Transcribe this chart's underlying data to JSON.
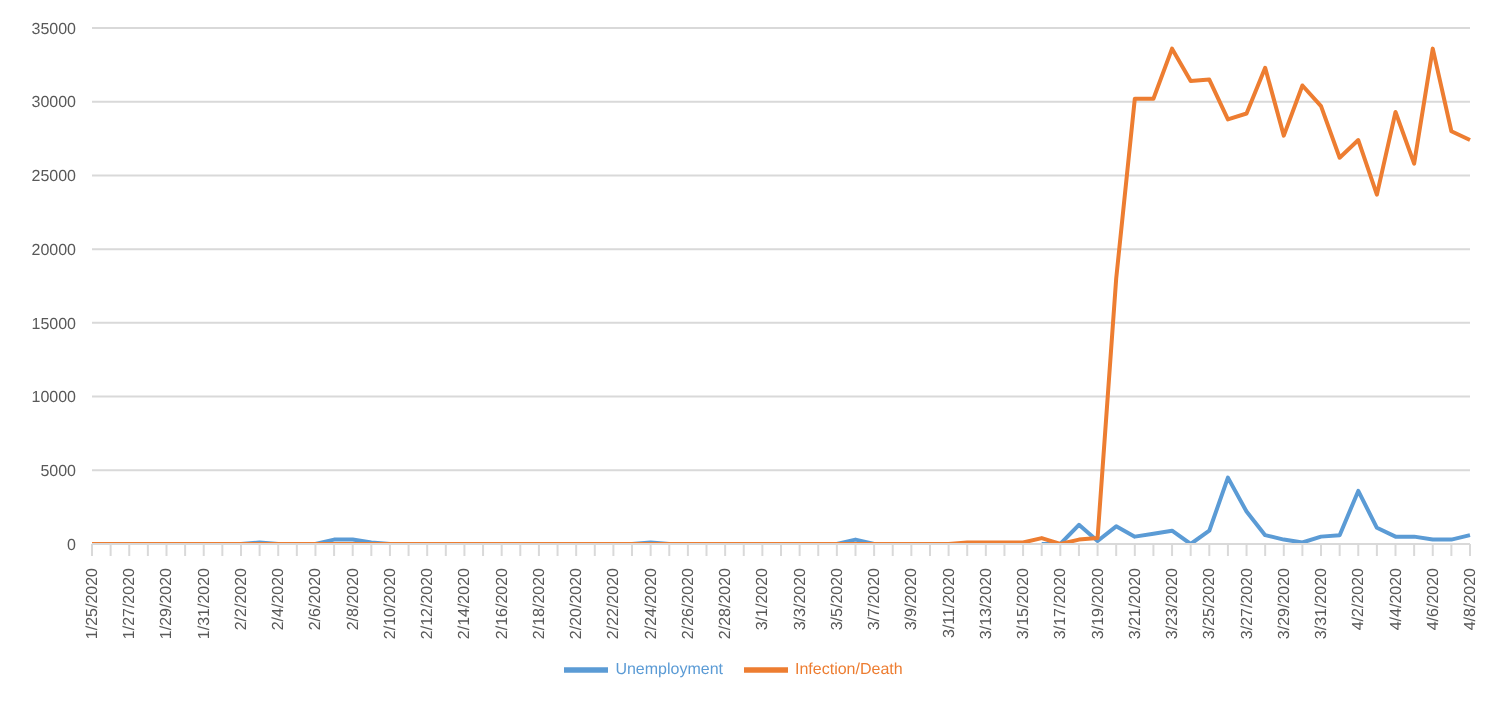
{
  "chart_data": {
    "type": "line",
    "categories": [
      "1/25/2020",
      null,
      "1/27/2020",
      null,
      "1/29/2020",
      null,
      "1/31/2020",
      null,
      "2/2/2020",
      null,
      "2/4/2020",
      null,
      "2/6/2020",
      null,
      "2/8/2020",
      null,
      "2/10/2020",
      null,
      "2/12/2020",
      null,
      "2/14/2020",
      null,
      "2/16/2020",
      null,
      "2/18/2020",
      null,
      "2/20/2020",
      null,
      "2/22/2020",
      null,
      "2/24/2020",
      null,
      "2/26/2020",
      null,
      "2/28/2020",
      null,
      "3/1/2020",
      null,
      "3/3/2020",
      null,
      "3/5/2020",
      null,
      "3/7/2020",
      null,
      "3/9/2020",
      null,
      "3/11/2020",
      null,
      "3/13/2020",
      null,
      "3/15/2020",
      null,
      "3/17/2020",
      null,
      "3/19/2020",
      null,
      "3/21/2020",
      null,
      "3/23/2020",
      null,
      "3/25/2020",
      null,
      "3/27/2020",
      null,
      "3/29/2020",
      null,
      "3/31/2020",
      null,
      "4/2/2020",
      null,
      "4/4/2020",
      null,
      "4/6/2020",
      null,
      "4/8/2020"
    ],
    "series": [
      {
        "name": "Unemployment",
        "color": "#5b9bd5",
        "values": [
          null,
          null,
          null,
          null,
          null,
          null,
          null,
          null,
          0,
          100,
          0,
          0,
          0,
          300,
          300,
          100,
          0,
          0,
          0,
          0,
          0,
          0,
          0,
          0,
          0,
          0,
          0,
          0,
          0,
          0,
          100,
          0,
          0,
          0,
          0,
          0,
          0,
          0,
          0,
          0,
          0,
          300,
          0,
          0,
          0,
          0,
          0,
          0,
          null,
          null,
          null,
          0,
          0,
          1300,
          200,
          1200,
          500,
          700,
          900,
          0,
          900,
          4500,
          2200,
          600,
          300,
          100,
          500,
          600,
          3600,
          1100,
          500,
          500,
          300,
          300,
          600
        ]
      },
      {
        "name": "Infection/Death",
        "color": "#ed7d31",
        "values": [
          0,
          0,
          0,
          0,
          0,
          0,
          0,
          0,
          0,
          0,
          0,
          0,
          0,
          0,
          0,
          0,
          0,
          0,
          0,
          0,
          0,
          0,
          0,
          0,
          0,
          0,
          0,
          0,
          0,
          0,
          0,
          0,
          0,
          0,
          0,
          0,
          0,
          0,
          0,
          0,
          0,
          0,
          0,
          0,
          0,
          0,
          0,
          100,
          100,
          100,
          100,
          400,
          0,
          300,
          400,
          18000,
          30200,
          30200,
          33600,
          31400,
          31500,
          28800,
          29200,
          32300,
          27700,
          31100,
          29700,
          26200,
          27400,
          23700,
          29300,
          25800,
          33600,
          28000,
          27400
        ]
      }
    ],
    "ylim": [
      0,
      35000
    ],
    "yticks": [
      0,
      5000,
      10000,
      15000,
      20000,
      25000,
      30000,
      35000
    ],
    "grid": "y",
    "legend": "bottom",
    "marker": "none",
    "line_style": "solid"
  }
}
